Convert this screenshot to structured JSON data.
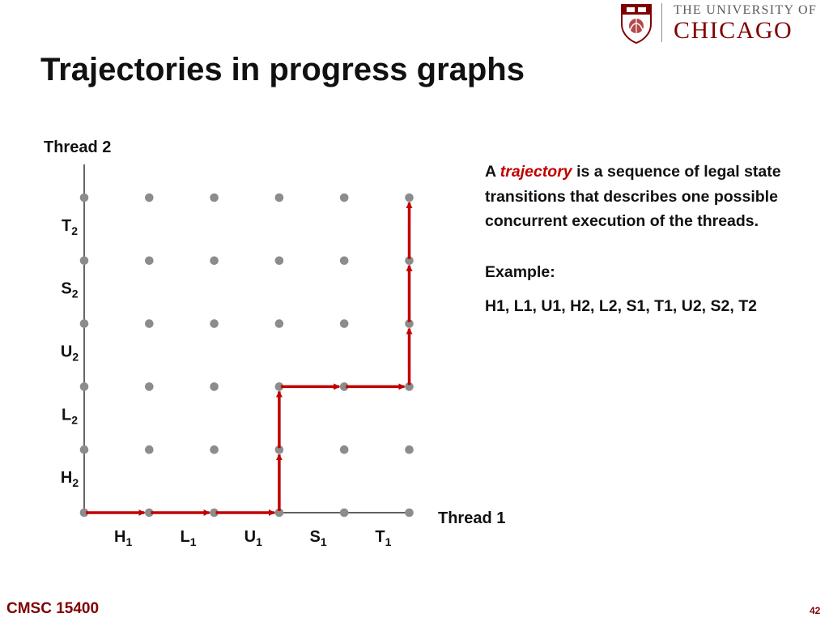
{
  "header": {
    "logo_line1": "THE UNIVERSITY OF",
    "logo_line2": "CHICAGO"
  },
  "title": "Trajectories in progress graphs",
  "graph": {
    "y_axis_label": "Thread 2",
    "x_axis_label": "Thread 1",
    "x_steps": [
      {
        "letter": "H",
        "sub": "1"
      },
      {
        "letter": "L",
        "sub": "1"
      },
      {
        "letter": "U",
        "sub": "1"
      },
      {
        "letter": "S",
        "sub": "1"
      },
      {
        "letter": "T",
        "sub": "1"
      }
    ],
    "y_steps": [
      {
        "letter": "H",
        "sub": "2"
      },
      {
        "letter": "L",
        "sub": "2"
      },
      {
        "letter": "U",
        "sub": "2"
      },
      {
        "letter": "S",
        "sub": "2"
      },
      {
        "letter": "T",
        "sub": "2"
      }
    ],
    "grid_cols": 6,
    "grid_rows": 6,
    "trajectory": [
      [
        0,
        0
      ],
      [
        1,
        0
      ],
      [
        2,
        0
      ],
      [
        3,
        0
      ],
      [
        3,
        1
      ],
      [
        3,
        2
      ],
      [
        4,
        2
      ],
      [
        5,
        2
      ],
      [
        5,
        3
      ],
      [
        5,
        4
      ],
      [
        5,
        5
      ]
    ]
  },
  "description": {
    "prefix": "A ",
    "term": "trajectory",
    "rest": " is a sequence of legal state transitions that describes one possible concurrent execution of the threads.",
    "example_label": "Example:",
    "example_sequence": "H1, L1, U1, H2, L2,  S1, T1, U2, S2, T2"
  },
  "footer": {
    "course": "CMSC 15400",
    "page_number": "42"
  }
}
